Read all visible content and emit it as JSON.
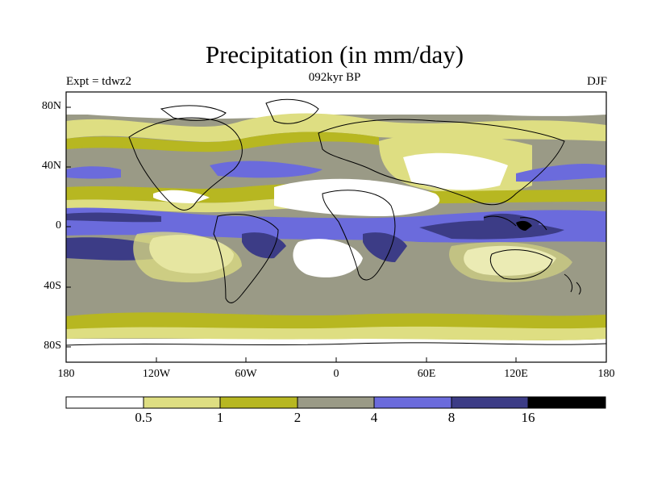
{
  "title": "Precipitation (in mm/day)",
  "subtitle": "092kyr BP",
  "left_label": "Expt = tdwz2",
  "right_label": "DJF",
  "lat_labels": [
    "80N",
    "40N",
    "0",
    "40S",
    "80S"
  ],
  "lon_labels": [
    "180",
    "120W",
    "60W",
    "0",
    "60E",
    "120E",
    "180"
  ],
  "colorbar": {
    "boundaries": [
      "0.5",
      "1",
      "2",
      "4",
      "8",
      "16"
    ],
    "colors": [
      "#ffffff",
      "#dede82",
      "#b7b721",
      "#9a9a86",
      "#6b6bdc",
      "#3c3c86",
      "#000000"
    ]
  }
}
